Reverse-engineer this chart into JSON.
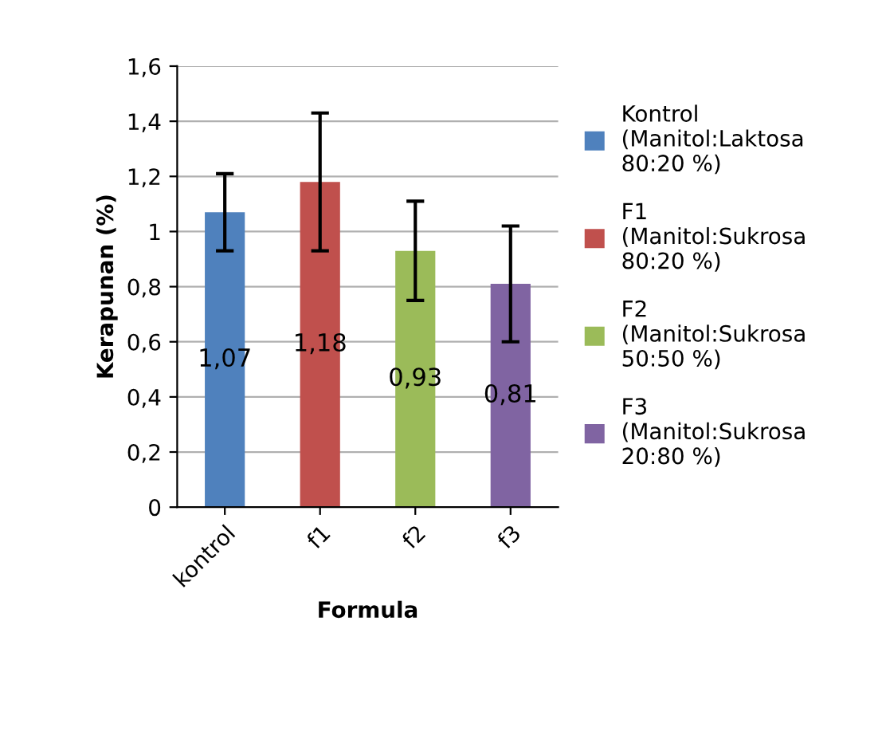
{
  "chart_data": {
    "type": "bar",
    "xlabel": "Formula",
    "ylabel": "Kerapunan (%)",
    "categories": [
      "kontrol",
      "f1",
      "f2",
      "f3"
    ],
    "series": [
      {
        "name": "Kontrol (Manitol:Laktosa 80:20 %)",
        "color": "#4f81bd",
        "values": [
          1.07,
          null,
          null,
          null
        ],
        "errors": [
          0.14,
          null,
          null,
          null
        ],
        "value_labels": [
          "1,07",
          null,
          null,
          null
        ]
      },
      {
        "name": "F1 (Manitol:Sukrosa 80:20 %)",
        "color": "#c0504d",
        "values": [
          null,
          1.18,
          null,
          null
        ],
        "errors": [
          null,
          0.25,
          null,
          null
        ],
        "value_labels": [
          null,
          "1,18",
          null,
          null
        ]
      },
      {
        "name": "F2 (Manitol:Sukrosa 50:50 %)",
        "color": "#9bbb59",
        "values": [
          null,
          null,
          0.93,
          null
        ],
        "errors": [
          null,
          null,
          0.18,
          null
        ],
        "value_labels": [
          null,
          null,
          "0,93",
          null
        ]
      },
      {
        "name": "F3 (Manitol:Sukrosa 20:80 %)",
        "color": "#8064a2",
        "values": [
          null,
          null,
          null,
          0.81
        ],
        "errors": [
          null,
          null,
          null,
          0.21
        ],
        "value_labels": [
          null,
          null,
          null,
          "0,81"
        ]
      }
    ],
    "ylim": [
      0,
      1.6
    ],
    "yticks": [
      0,
      {
        "value": 0.2,
        "label": "0,2"
      },
      {
        "value": 0.4,
        "label": "0,4"
      },
      {
        "value": 0.6,
        "label": "0,6"
      },
      {
        "value": 0.8,
        "label": "0,8"
      },
      1,
      {
        "value": 1.2,
        "label": "1,2"
      },
      {
        "value": 1.4,
        "label": "1,4"
      },
      {
        "value": 1.6,
        "label": "1,6"
      }
    ],
    "grid": "y",
    "legend": "right"
  }
}
